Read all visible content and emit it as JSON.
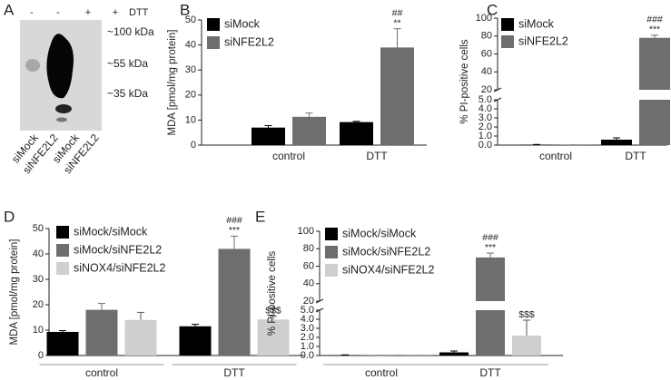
{
  "blot": {
    "panel_label": "A",
    "treatment_label": "DTT",
    "treatment_signs": [
      "-",
      "-",
      "+",
      "+"
    ],
    "markers": [
      "~100 kDa",
      "~55 kDa",
      "~35 kDa"
    ],
    "lanes": [
      "siMock",
      "siNFE2L2",
      "siMock",
      "siNFE2L2"
    ]
  },
  "chart_data": [
    {
      "type": "bar",
      "panel_label": "B",
      "ylabel": "MDA [pmol/mg protein]",
      "categories": [
        "control",
        "DTT"
      ],
      "series": [
        {
          "name": "siMock",
          "color": "#000000",
          "values": [
            7,
            9.2
          ],
          "errors": [
            0.8,
            0.3
          ],
          "annotations": [
            null,
            null
          ]
        },
        {
          "name": "siNFE2L2",
          "color": "#6e6e6e",
          "values": [
            11.3,
            39
          ],
          "errors": [
            1.5,
            7.5
          ],
          "annotations": [
            null,
            [
              "##",
              "**"
            ]
          ]
        }
      ],
      "ylim": [
        0,
        50
      ],
      "yticks": [
        0,
        10,
        20,
        30,
        40,
        50
      ],
      "category_underline": false
    },
    {
      "type": "bar",
      "panel_label": "C",
      "ylabel": "% PI-positive cells",
      "categories": [
        "control",
        "DTT"
      ],
      "series": [
        {
          "name": "siMock",
          "color": "#000000",
          "values": [
            0.05,
            0.6
          ],
          "errors": [
            0.02,
            0.2
          ],
          "annotations": [
            null,
            null
          ]
        },
        {
          "name": "siNFE2L2",
          "color": "#6e6e6e",
          "values": [
            0.02,
            78
          ],
          "errors": [
            0.01,
            3
          ],
          "annotations": [
            null,
            [
              "###",
              "***"
            ]
          ]
        }
      ],
      "ylim": [
        0,
        100
      ],
      "ybreak": [
        5,
        20
      ],
      "yticks": [
        {
          "value": 0,
          "label": "0.0"
        },
        {
          "value": 1,
          "label": "1.0"
        },
        {
          "value": 2,
          "label": "2.0"
        },
        {
          "value": 3,
          "label": "3.0"
        },
        {
          "value": 4,
          "label": "4.0"
        },
        {
          "value": 5,
          "label": "5.0"
        },
        20,
        40,
        60,
        80,
        100
      ],
      "category_underline": false
    },
    {
      "type": "bar",
      "panel_label": "D",
      "ylabel": "MDA [pmol/mg protein]",
      "categories": [
        "control",
        "DTT"
      ],
      "series": [
        {
          "name": "siMock/siMock",
          "color": "#000000",
          "values": [
            9.3,
            11.5
          ],
          "errors": [
            0.5,
            0.8
          ],
          "annotations": [
            null,
            null
          ]
        },
        {
          "name": "siMock/siNFE2L2",
          "color": "#6e6e6e",
          "values": [
            18,
            42
          ],
          "errors": [
            2.5,
            5
          ],
          "annotations": [
            null,
            [
              "###",
              "***"
            ]
          ]
        },
        {
          "name": "siNOX4/siNFE2L2",
          "color": "#cfcfcf",
          "values": [
            14,
            14.2
          ],
          "errors": [
            3,
            1.2
          ],
          "annotations": [
            null,
            [
              "$$$"
            ]
          ]
        }
      ],
      "ylim": [
        0,
        50
      ],
      "yticks": [
        0,
        10,
        20,
        30,
        40,
        50
      ],
      "category_underline": true
    },
    {
      "type": "bar",
      "panel_label": "E",
      "ylabel": "% PI-positive cells",
      "categories": [
        "control",
        "DTT"
      ],
      "series": [
        {
          "name": "siMock/siMock",
          "color": "#000000",
          "values": [
            0.05,
            0.35
          ],
          "errors": [
            0.02,
            0.15
          ],
          "annotations": [
            null,
            null
          ]
        },
        {
          "name": "siMock/siNFE2L2",
          "color": "#6e6e6e",
          "values": [
            0.02,
            70
          ],
          "errors": [
            0.01,
            5
          ],
          "annotations": [
            null,
            [
              "###",
              "***"
            ]
          ]
        },
        {
          "name": "siNOX4/siNFE2L2",
          "color": "#cfcfcf",
          "values": [
            0.01,
            2.2
          ],
          "errors": [
            0.01,
            1.7
          ],
          "annotations": [
            null,
            [
              "$$$"
            ]
          ]
        }
      ],
      "ylim": [
        0,
        100
      ],
      "ybreak": [
        5,
        20
      ],
      "yticks": [
        {
          "value": 0,
          "label": "0.0"
        },
        {
          "value": 1,
          "label": "1.0"
        },
        {
          "value": 2,
          "label": "2.0"
        },
        {
          "value": 3,
          "label": "3.0"
        },
        {
          "value": 4,
          "label": "4.0"
        },
        {
          "value": 5,
          "label": "5.0"
        },
        20,
        40,
        60,
        80,
        100
      ],
      "category_underline": true
    }
  ]
}
